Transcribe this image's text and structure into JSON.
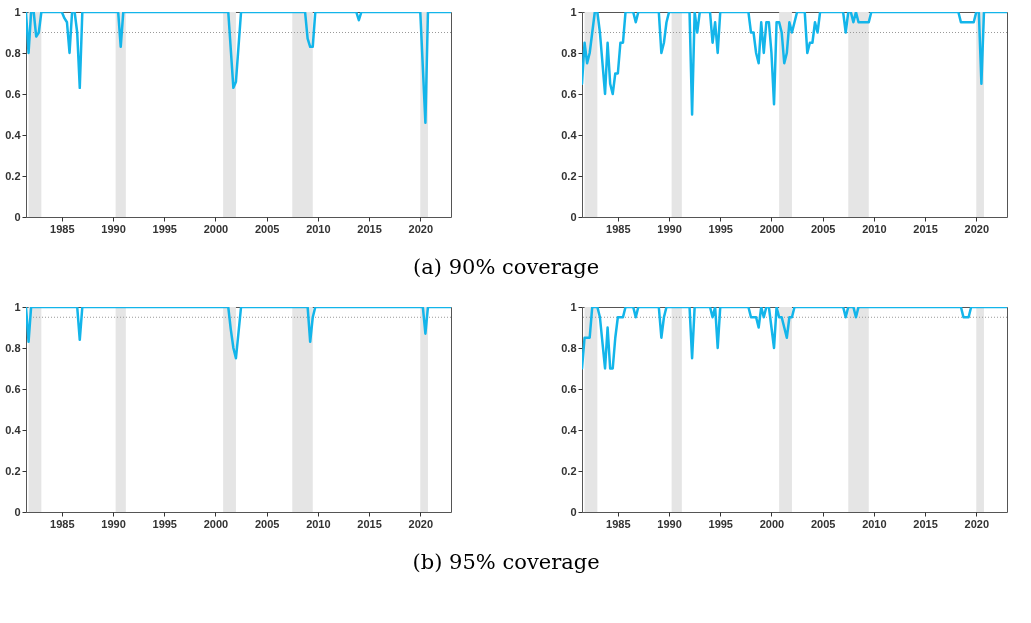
{
  "chart_data": [
    {
      "type": "line",
      "annotations": [
        "(a) 90% coverage"
      ],
      "color": "#13b5ea",
      "line_style": "solid",
      "grid": false,
      "xlim": [
        1981.5,
        2023
      ],
      "xticks": [
        1985,
        1990,
        1995,
        2000,
        2005,
        2010,
        2015,
        2020
      ],
      "ylim": [
        0,
        1
      ],
      "yticks": [
        0,
        0.2,
        0.4,
        0.6,
        0.8,
        1
      ],
      "x": [
        1981.5,
        1981.75,
        1982,
        1982.25,
        1982.5,
        1982.75,
        1983,
        1985,
        1985.25,
        1985.5,
        1985.75,
        1986,
        1986.25,
        1986.5,
        1986.75,
        1987,
        1990.5,
        1990.75,
        1991,
        2001.25,
        2001.75,
        2002,
        2002.5,
        2008.75,
        2009,
        2009.25,
        2009.5,
        2009.75,
        2013.75,
        2014,
        2014.25,
        2020,
        2020.5,
        2020.75,
        2023
      ],
      "values": [
        1,
        0.8,
        1,
        1,
        0.88,
        0.9,
        1,
        1,
        0.97,
        0.95,
        0.8,
        1,
        1,
        0.9,
        0.63,
        1,
        1,
        0.83,
        1,
        1,
        0.63,
        0.66,
        1,
        1,
        0.87,
        0.83,
        0.83,
        1,
        1,
        0.96,
        1,
        1,
        0.46,
        1,
        1
      ],
      "ref_lines": [
        {
          "axis": "y",
          "value": 0.9,
          "color": "#999999",
          "line_style": "dotted"
        }
      ],
      "bands": [
        {
          "axis": "x",
          "from": 1981.75,
          "to": 1983,
          "color": "#e5e5e5"
        },
        {
          "axis": "x",
          "from": 1990.25,
          "to": 1991.25,
          "color": "#e5e5e5"
        },
        {
          "axis": "x",
          "from": 2000.75,
          "to": 2002,
          "color": "#e5e5e5"
        },
        {
          "axis": "x",
          "from": 2007.5,
          "to": 2009.5,
          "color": "#e5e5e5"
        },
        {
          "axis": "x",
          "from": 2020,
          "to": 2020.75,
          "color": "#e5e5e5"
        }
      ]
    },
    {
      "type": "line",
      "color": "#13b5ea",
      "line_style": "solid",
      "grid": false,
      "xlim": [
        1981.5,
        2023
      ],
      "xticks": [
        1985,
        1990,
        1995,
        2000,
        2005,
        2010,
        2015,
        2020
      ],
      "ylim": [
        0,
        1
      ],
      "yticks": [
        0,
        0.2,
        0.4,
        0.6,
        0.8,
        1
      ],
      "x": [
        1981.5,
        1981.75,
        1982,
        1982.25,
        1982.5,
        1982.75,
        1983,
        1983.25,
        1983.75,
        1984,
        1984.25,
        1984.5,
        1984.75,
        1985,
        1985.25,
        1985.5,
        1985.75,
        1986.5,
        1986.75,
        1987,
        1989,
        1989.25,
        1989.5,
        1989.75,
        1990,
        1992,
        1992.25,
        1992.5,
        1992.75,
        1993,
        1994,
        1994.25,
        1994.5,
        1994.75,
        1995,
        1997.75,
        1998,
        1998.25,
        1998.5,
        1998.75,
        1999,
        1999.25,
        1999.5,
        1999.75,
        2000,
        2000.25,
        2000.5,
        2000.75,
        2001,
        2001.25,
        2001.5,
        2001.75,
        2002,
        2002.25,
        2002.5,
        2003.25,
        2003.5,
        2003.75,
        2004,
        2004.25,
        2004.5,
        2004.75,
        2007,
        2007.25,
        2007.5,
        2007.75,
        2008,
        2008.25,
        2008.5,
        2009.5,
        2009.75,
        2018.25,
        2018.5,
        2019.75,
        2020,
        2020.25,
        2020.5,
        2020.75,
        2023
      ],
      "values": [
        0.65,
        0.85,
        0.75,
        0.8,
        0.9,
        1,
        1,
        0.9,
        0.6,
        0.85,
        0.65,
        0.6,
        0.7,
        0.7,
        0.85,
        0.85,
        1,
        1,
        0.95,
        1,
        1,
        0.8,
        0.85,
        0.95,
        1,
        1,
        0.5,
        1,
        0.9,
        1,
        1,
        0.85,
        0.95,
        0.8,
        1,
        1,
        0.9,
        0.9,
        0.8,
        0.75,
        0.95,
        0.8,
        0.95,
        0.95,
        0.8,
        0.55,
        0.95,
        0.95,
        0.9,
        0.75,
        0.8,
        0.95,
        0.9,
        0.95,
        1,
        1,
        0.8,
        0.85,
        0.85,
        0.95,
        0.9,
        1,
        1,
        0.9,
        1,
        1,
        0.95,
        1,
        0.95,
        0.95,
        1,
        1,
        0.95,
        0.95,
        1,
        1,
        0.65,
        1,
        1
      ],
      "ref_lines": [
        {
          "axis": "y",
          "value": 0.9,
          "color": "#999999",
          "line_style": "dotted"
        }
      ],
      "bands": [
        {
          "axis": "x",
          "from": 1981.75,
          "to": 1983,
          "color": "#e5e5e5"
        },
        {
          "axis": "x",
          "from": 1990.25,
          "to": 1991.25,
          "color": "#e5e5e5"
        },
        {
          "axis": "x",
          "from": 2000.75,
          "to": 2002,
          "color": "#e5e5e5"
        },
        {
          "axis": "x",
          "from": 2007.5,
          "to": 2009.5,
          "color": "#e5e5e5"
        },
        {
          "axis": "x",
          "from": 2020,
          "to": 2020.75,
          "color": "#e5e5e5"
        }
      ]
    },
    {
      "type": "line",
      "annotations": [
        "(b) 95% coverage"
      ],
      "color": "#13b5ea",
      "line_style": "solid",
      "grid": false,
      "xlim": [
        1981.5,
        2023
      ],
      "xticks": [
        1985,
        1990,
        1995,
        2000,
        2005,
        2010,
        2015,
        2020
      ],
      "ylim": [
        0,
        1
      ],
      "yticks": [
        0,
        0.2,
        0.4,
        0.6,
        0.8,
        1
      ],
      "x": [
        1981.5,
        1981.75,
        1982,
        1986.5,
        1986.75,
        1987,
        2001.25,
        2001.5,
        2001.75,
        2002,
        2002.5,
        2009,
        2009.25,
        2009.5,
        2009.75,
        2020.25,
        2020.5,
        2020.75,
        2023
      ],
      "values": [
        1,
        0.83,
        1,
        1,
        0.84,
        1,
        1,
        0.89,
        0.8,
        0.75,
        1,
        1,
        0.83,
        0.95,
        1,
        1,
        0.87,
        1,
        1
      ],
      "ref_lines": [
        {
          "axis": "y",
          "value": 0.95,
          "color": "#999999",
          "line_style": "dotted"
        }
      ],
      "bands": [
        {
          "axis": "x",
          "from": 1981.75,
          "to": 1983,
          "color": "#e5e5e5"
        },
        {
          "axis": "x",
          "from": 1990.25,
          "to": 1991.25,
          "color": "#e5e5e5"
        },
        {
          "axis": "x",
          "from": 2000.75,
          "to": 2002,
          "color": "#e5e5e5"
        },
        {
          "axis": "x",
          "from": 2007.5,
          "to": 2009.5,
          "color": "#e5e5e5"
        },
        {
          "axis": "x",
          "from": 2020,
          "to": 2020.75,
          "color": "#e5e5e5"
        }
      ]
    },
    {
      "type": "line",
      "color": "#13b5ea",
      "line_style": "solid",
      "grid": false,
      "xlim": [
        1981.5,
        2023
      ],
      "xticks": [
        1985,
        1990,
        1995,
        2000,
        2005,
        2010,
        2015,
        2020
      ],
      "ylim": [
        0,
        1
      ],
      "yticks": [
        0,
        0.2,
        0.4,
        0.6,
        0.8,
        1
      ],
      "x": [
        1981.5,
        1981.75,
        1982,
        1982.25,
        1982.5,
        1983,
        1983.25,
        1983.75,
        1984,
        1984.25,
        1984.5,
        1984.75,
        1985,
        1985.25,
        1985.5,
        1985.75,
        1986.5,
        1986.75,
        1987,
        1989,
        1989.25,
        1989.5,
        1989.75,
        1992,
        1992.25,
        1992.5,
        1994,
        1994.25,
        1994.5,
        1994.75,
        1995,
        1997.75,
        1998,
        1998.25,
        1998.5,
        1998.75,
        1999,
        1999.25,
        1999.5,
        1999.75,
        2000,
        2000.25,
        2000.5,
        2000.75,
        2001,
        2001.25,
        2001.5,
        2001.75,
        2002,
        2002.25,
        2007,
        2007.25,
        2007.5,
        2008,
        2008.25,
        2008.5,
        2018.5,
        2018.75,
        2019.25,
        2019.5,
        2023
      ],
      "values": [
        0.7,
        0.85,
        0.85,
        0.85,
        1,
        1,
        0.95,
        0.7,
        0.9,
        0.7,
        0.7,
        0.85,
        0.95,
        0.95,
        0.95,
        1,
        1,
        0.95,
        1,
        1,
        0.85,
        0.95,
        1,
        1,
        0.75,
        1,
        1,
        0.95,
        1,
        0.8,
        1,
        1,
        0.95,
        0.95,
        0.95,
        0.9,
        1,
        0.95,
        1,
        1,
        0.9,
        0.8,
        1,
        0.95,
        0.95,
        0.9,
        0.85,
        0.95,
        0.95,
        1,
        1,
        0.95,
        1,
        1,
        0.95,
        1,
        1,
        0.95,
        0.95,
        1,
        1
      ],
      "ref_lines": [
        {
          "axis": "y",
          "value": 0.95,
          "color": "#999999",
          "line_style": "dotted"
        }
      ],
      "bands": [
        {
          "axis": "x",
          "from": 1981.75,
          "to": 1983,
          "color": "#e5e5e5"
        },
        {
          "axis": "x",
          "from": 1990.25,
          "to": 1991.25,
          "color": "#e5e5e5"
        },
        {
          "axis": "x",
          "from": 2000.75,
          "to": 2002,
          "color": "#e5e5e5"
        },
        {
          "axis": "x",
          "from": 2007.5,
          "to": 2009.5,
          "color": "#e5e5e5"
        },
        {
          "axis": "x",
          "from": 2020,
          "to": 2020.75,
          "color": "#e5e5e5"
        }
      ]
    }
  ]
}
